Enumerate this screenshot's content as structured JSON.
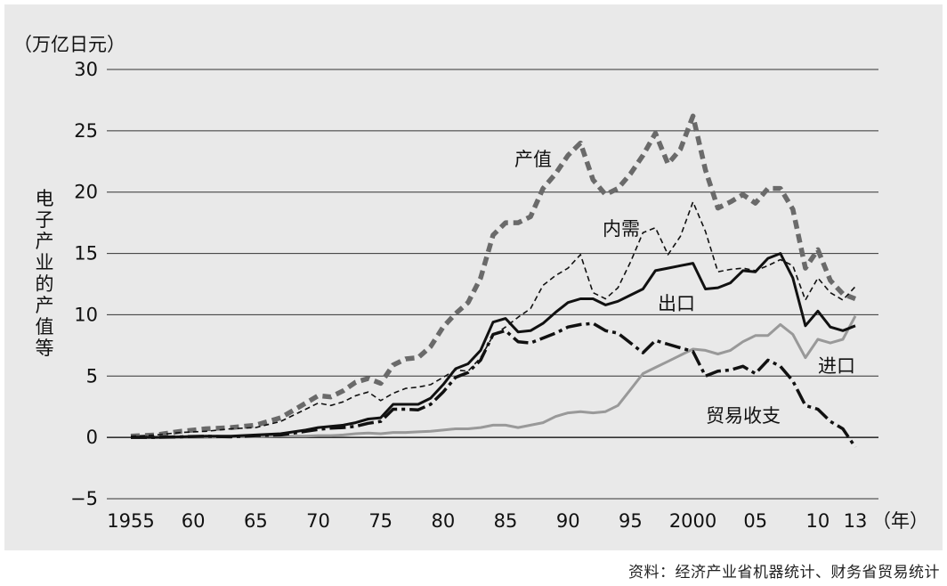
{
  "source_note": "资料：经济产业省机器统计、财务省贸易统计",
  "chart_data": {
    "type": "line",
    "y_unit": "（万亿日元）",
    "ylabel": "电子产业的产值等",
    "x_unit": "（年）",
    "ylim": [
      -5,
      30
    ],
    "y_ticks": [
      -5,
      0,
      5,
      10,
      15,
      20,
      25,
      30
    ],
    "y_tick_labels": [
      "−5",
      "0",
      "5",
      "10",
      "15",
      "20",
      "25",
      "30"
    ],
    "x_range": [
      1955,
      2013
    ],
    "x_ticks": [
      1955,
      1960,
      1965,
      1970,
      1975,
      1980,
      1985,
      1990,
      1995,
      2000,
      2005,
      2010,
      2013
    ],
    "x_tick_labels": [
      "1955",
      "60",
      "65",
      "70",
      "75",
      "80",
      "85",
      "90",
      "95",
      "2000",
      "05",
      "10",
      "13"
    ],
    "grid": "horizontal",
    "series": [
      {
        "name": "产值",
        "color": "#6a6a6a",
        "style": "thick-dashed",
        "x": [
          1955,
          1957,
          1959,
          1961,
          1963,
          1965,
          1967,
          1969,
          1970,
          1971,
          1972,
          1973,
          1974,
          1975,
          1976,
          1977,
          1978,
          1979,
          1980,
          1981,
          1982,
          1983,
          1984,
          1985,
          1986,
          1987,
          1988,
          1989,
          1990,
          1991,
          1992,
          1993,
          1994,
          1995,
          1996,
          1997,
          1998,
          1999,
          2000,
          2001,
          2002,
          2003,
          2004,
          2005,
          2006,
          2007,
          2008,
          2009,
          2010,
          2011,
          2012,
          2013
        ],
        "y": [
          0.1,
          0.2,
          0.5,
          0.7,
          0.8,
          1.0,
          1.6,
          2.8,
          3.4,
          3.3,
          3.8,
          4.5,
          4.8,
          4.4,
          5.9,
          6.4,
          6.5,
          7.4,
          9.0,
          10.1,
          11.0,
          13.0,
          16.5,
          17.5,
          17.5,
          18.0,
          20.3,
          21.5,
          23.0,
          24.0,
          21.0,
          19.8,
          20.3,
          21.5,
          23.0,
          24.8,
          22.3,
          23.5,
          26.2,
          21.8,
          18.7,
          19.2,
          19.8,
          19.1,
          20.3,
          20.3,
          18.6,
          13.8,
          15.3,
          12.8,
          11.7,
          11.3
        ]
      },
      {
        "name": "内需",
        "color": "#111111",
        "style": "thin-dashed",
        "x": [
          1955,
          1957,
          1959,
          1961,
          1963,
          1965,
          1967,
          1969,
          1970,
          1971,
          1972,
          1973,
          1974,
          1975,
          1976,
          1977,
          1978,
          1979,
          1980,
          1981,
          1982,
          1983,
          1984,
          1985,
          1986,
          1987,
          1988,
          1989,
          1990,
          1991,
          1992,
          1993,
          1994,
          1995,
          1996,
          1997,
          1998,
          1999,
          2000,
          2001,
          2002,
          2003,
          2004,
          2005,
          2006,
          2007,
          2008,
          2009,
          2010,
          2011,
          2012,
          2013
        ],
        "y": [
          0.1,
          0.2,
          0.4,
          0.5,
          0.7,
          0.8,
          1.3,
          2.3,
          2.8,
          2.6,
          2.9,
          3.4,
          3.7,
          3.0,
          3.6,
          4.0,
          4.1,
          4.3,
          4.9,
          5.5,
          5.4,
          6.5,
          8.3,
          9.0,
          9.8,
          10.5,
          12.4,
          13.2,
          13.8,
          14.9,
          11.8,
          11.3,
          12.2,
          14.3,
          16.7,
          17.1,
          14.9,
          16.4,
          19.2,
          16.8,
          13.5,
          13.7,
          13.8,
          13.6,
          14.0,
          14.5,
          14.0,
          11.2,
          13.0,
          11.8,
          11.2,
          12.3
        ]
      },
      {
        "name": "出口",
        "color": "#111111",
        "style": "solid",
        "x": [
          1955,
          1957,
          1959,
          1961,
          1963,
          1965,
          1967,
          1969,
          1970,
          1971,
          1972,
          1973,
          1974,
          1975,
          1976,
          1977,
          1978,
          1979,
          1980,
          1981,
          1982,
          1983,
          1984,
          1985,
          1986,
          1987,
          1988,
          1989,
          1990,
          1991,
          1992,
          1993,
          1994,
          1995,
          1996,
          1997,
          1998,
          1999,
          2000,
          2001,
          2002,
          2003,
          2004,
          2005,
          2006,
          2007,
          2008,
          2009,
          2010,
          2011,
          2012,
          2013
        ],
        "y": [
          0.0,
          0.0,
          0.05,
          0.1,
          0.1,
          0.2,
          0.3,
          0.6,
          0.8,
          0.9,
          1.0,
          1.2,
          1.5,
          1.6,
          2.7,
          2.7,
          2.7,
          3.2,
          4.3,
          5.6,
          6.0,
          7.1,
          9.4,
          9.7,
          8.6,
          8.7,
          9.3,
          10.2,
          11.0,
          11.3,
          11.3,
          10.8,
          11.1,
          11.6,
          12.1,
          13.6,
          13.8,
          14.0,
          14.2,
          12.1,
          12.2,
          12.6,
          13.6,
          13.5,
          14.6,
          15.0,
          13.0,
          9.1,
          10.3,
          9.0,
          8.7,
          9.1
        ]
      },
      {
        "name": "进口",
        "color": "#999999",
        "style": "solid",
        "x": [
          1955,
          1957,
          1959,
          1961,
          1963,
          1965,
          1967,
          1969,
          1970,
          1971,
          1972,
          1973,
          1974,
          1975,
          1976,
          1977,
          1978,
          1979,
          1980,
          1981,
          1982,
          1983,
          1984,
          1985,
          1986,
          1987,
          1988,
          1989,
          1990,
          1991,
          1992,
          1993,
          1994,
          1995,
          1996,
          1997,
          1998,
          1999,
          2000,
          2001,
          2002,
          2003,
          2004,
          2005,
          2006,
          2007,
          2008,
          2009,
          2010,
          2011,
          2012,
          2013
        ],
        "y": [
          0.0,
          0.0,
          0.0,
          0.0,
          0.05,
          0.05,
          0.1,
          0.1,
          0.15,
          0.15,
          0.2,
          0.3,
          0.35,
          0.3,
          0.4,
          0.4,
          0.45,
          0.5,
          0.6,
          0.7,
          0.7,
          0.8,
          1.0,
          1.0,
          0.8,
          1.0,
          1.2,
          1.7,
          2.0,
          2.1,
          2.0,
          2.1,
          2.6,
          3.9,
          5.2,
          5.7,
          6.2,
          6.7,
          7.2,
          7.1,
          6.8,
          7.1,
          7.8,
          8.3,
          8.3,
          9.2,
          8.4,
          6.5,
          8.0,
          7.7,
          8.0,
          9.9
        ]
      },
      {
        "name": "贸易收支",
        "color": "#111111",
        "style": "dash-dot",
        "x": [
          1955,
          1957,
          1959,
          1961,
          1963,
          1965,
          1967,
          1969,
          1970,
          1971,
          1972,
          1973,
          1974,
          1975,
          1976,
          1977,
          1978,
          1979,
          1980,
          1981,
          1982,
          1983,
          1984,
          1985,
          1986,
          1987,
          1988,
          1989,
          1990,
          1991,
          1992,
          1993,
          1994,
          1995,
          1996,
          1997,
          1998,
          1999,
          2000,
          2001,
          2002,
          2003,
          2004,
          2005,
          2006,
          2007,
          2008,
          2009,
          2010,
          2011,
          2012,
          2013
        ],
        "y": [
          0.0,
          0.0,
          0.05,
          0.1,
          0.05,
          0.15,
          0.2,
          0.5,
          0.65,
          0.75,
          0.8,
          0.9,
          1.15,
          1.3,
          2.3,
          2.3,
          2.25,
          2.7,
          3.7,
          4.9,
          5.3,
          6.3,
          8.4,
          8.7,
          7.8,
          7.7,
          8.1,
          8.5,
          9.0,
          9.2,
          9.3,
          8.7,
          8.5,
          7.7,
          6.9,
          7.9,
          7.6,
          7.3,
          7.0,
          5.0,
          5.4,
          5.5,
          5.8,
          5.2,
          6.3,
          5.8,
          4.6,
          2.6,
          2.3,
          1.3,
          0.7,
          -0.8
        ]
      }
    ]
  }
}
